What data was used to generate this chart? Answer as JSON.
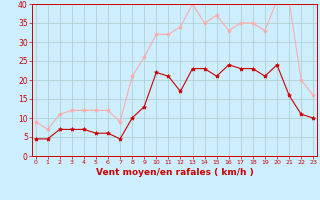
{
  "x": [
    0,
    1,
    2,
    3,
    4,
    5,
    6,
    7,
    8,
    9,
    10,
    11,
    12,
    13,
    14,
    15,
    16,
    17,
    18,
    19,
    20,
    21,
    22,
    23
  ],
  "wind_mean": [
    4.5,
    4.5,
    7,
    7,
    7,
    6,
    6,
    4.5,
    10,
    13,
    22,
    21,
    17,
    23,
    23,
    21,
    24,
    23,
    23,
    21,
    24,
    16,
    11,
    10
  ],
  "wind_gust": [
    9,
    7,
    11,
    12,
    12,
    12,
    12,
    9,
    21,
    26,
    32,
    32,
    34,
    40,
    35,
    37,
    33,
    35,
    35,
    33,
    41,
    41,
    20,
    16
  ],
  "bg_color": "#cceeff",
  "grid_color": "#aacccc",
  "mean_color": "#cc0000",
  "gust_color": "#ffaaaa",
  "xlabel": "Vent moyen/en rafales ( km/h )",
  "xlabel_color": "#cc0000",
  "tick_color": "#cc0000",
  "spine_color": "#cc0000",
  "ylim": [
    0,
    40
  ],
  "yticks": [
    0,
    5,
    10,
    15,
    20,
    25,
    30,
    35,
    40
  ],
  "xticks": [
    0,
    1,
    2,
    3,
    4,
    5,
    6,
    7,
    8,
    9,
    10,
    11,
    12,
    13,
    14,
    15,
    16,
    17,
    18,
    19,
    20,
    21,
    22,
    23
  ],
  "marker": "*",
  "markersize": 3,
  "linewidth": 0.8,
  "xtick_fontsize": 4.5,
  "ytick_fontsize": 5.5,
  "xlabel_fontsize": 6.5
}
